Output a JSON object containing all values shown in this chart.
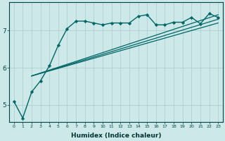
{
  "xlabel": "Humidex (Indice chaleur)",
  "background_color": "#cce8e8",
  "grid_color": "#aacccc",
  "line_color": "#006666",
  "x_ticks": [
    0,
    1,
    2,
    3,
    4,
    5,
    6,
    7,
    8,
    9,
    10,
    11,
    12,
    13,
    14,
    15,
    16,
    17,
    18,
    19,
    20,
    21,
    22,
    23
  ],
  "y_ticks": [
    5,
    6,
    7
  ],
  "xlim": [
    -0.5,
    23.5
  ],
  "ylim": [
    4.55,
    7.75
  ],
  "series": [
    {
      "x": [
        0,
        1,
        2,
        3,
        4,
        5,
        6,
        7,
        8,
        9,
        10,
        11,
        12,
        13,
        14,
        15,
        16,
        17,
        18,
        19,
        20,
        21,
        22,
        23
      ],
      "y": [
        5.1,
        4.65,
        5.35,
        5.65,
        6.05,
        6.6,
        7.05,
        7.25,
        7.25,
        7.2,
        7.15,
        7.2,
        7.2,
        7.2,
        7.38,
        7.42,
        7.15,
        7.15,
        7.22,
        7.22,
        7.35,
        7.18,
        7.45,
        7.35
      ],
      "marker": "D",
      "markersize": 2.2,
      "linewidth": 1.0,
      "linestyle": "-",
      "dotted": false
    },
    {
      "x": [
        2,
        23
      ],
      "y": [
        5.78,
        7.2
      ],
      "marker": null,
      "markersize": 0,
      "linewidth": 0.9,
      "linestyle": "-",
      "dotted": false
    },
    {
      "x": [
        2,
        23
      ],
      "y": [
        5.78,
        7.3
      ],
      "marker": null,
      "markersize": 0,
      "linewidth": 0.9,
      "linestyle": "-",
      "dotted": false
    },
    {
      "x": [
        2,
        23
      ],
      "y": [
        5.78,
        7.42
      ],
      "marker": null,
      "markersize": 0,
      "linewidth": 0.9,
      "linestyle": "-",
      "dotted": false
    }
  ],
  "tick_fontsize_x": 4.5,
  "tick_fontsize_y": 6.5,
  "xlabel_fontsize": 6.5,
  "xlabel_color": "#003333",
  "spine_color": "#004444"
}
